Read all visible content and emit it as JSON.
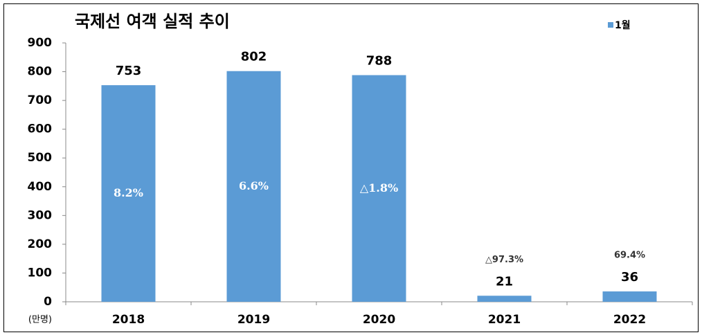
{
  "chart_data": {
    "type": "bar",
    "title": "국제선 여객 실적 추이",
    "y_axis_label": "(만명)",
    "categories": [
      "2018",
      "2019",
      "2020",
      "2021",
      "2022"
    ],
    "series": [
      {
        "name": "1월",
        "color": "#5b9bd5",
        "values": [
          753,
          802,
          788,
          21,
          36
        ]
      }
    ],
    "growth_labels": [
      "8.2%",
      "6.6%",
      "△1.8%",
      "△97.3%",
      "69.4%"
    ],
    "ylim": [
      0,
      900
    ],
    "yticks": [
      0,
      100,
      200,
      300,
      400,
      500,
      600,
      700,
      800,
      900
    ],
    "legend": "top-right"
  }
}
